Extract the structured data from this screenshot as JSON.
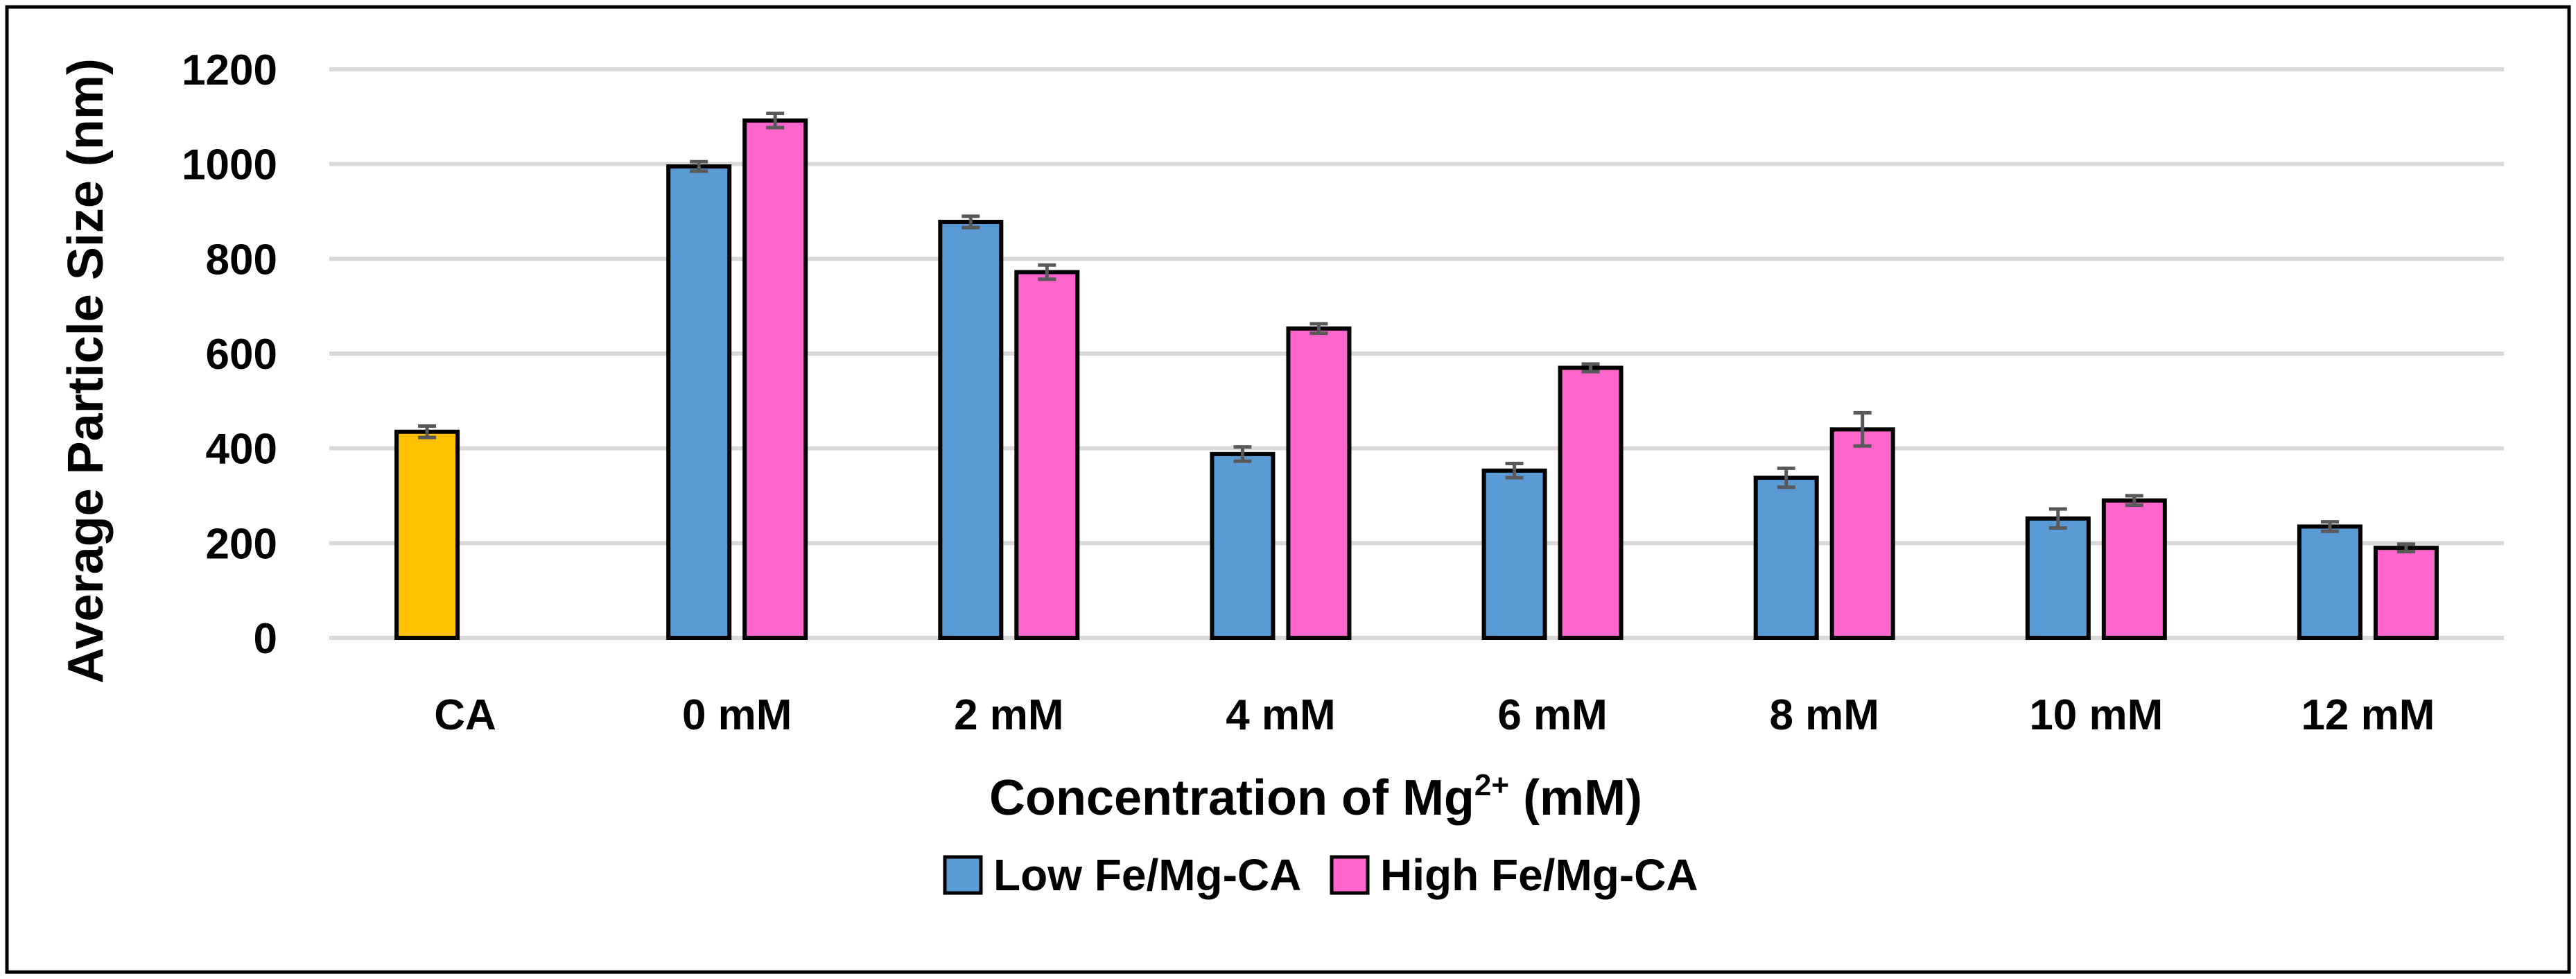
{
  "chart_data": {
    "type": "bar",
    "title": "",
    "xlabel": "Concentration of Mg",
    "xlabel_superscript": "2+",
    "xlabel_suffix": " (mM)",
    "ylabel": "Average Particle Size (nm)",
    "ylim": [
      0,
      1200
    ],
    "yticks": [
      0,
      200,
      400,
      600,
      800,
      1000,
      1200
    ],
    "grid": true,
    "legend_position": "bottom",
    "categories": [
      "CA",
      "0 mM",
      "2 mM",
      "4 mM",
      "6 mM",
      "8 mM",
      "10 mM",
      "12 mM"
    ],
    "control": {
      "name": "CA",
      "value": 435,
      "error": 12,
      "color": "#FFC000"
    },
    "series": [
      {
        "name": "Low Fe/Mg-CA",
        "color": "#5B9BD5",
        "values": [
          null,
          995,
          878,
          388,
          353,
          338,
          252,
          235
        ],
        "errors": [
          null,
          10,
          12,
          15,
          15,
          20,
          20,
          10
        ]
      },
      {
        "name": "High Fe/Mg-CA",
        "color": "#FF66CC",
        "values": [
          null,
          1092,
          772,
          653,
          570,
          440,
          290,
          190
        ],
        "errors": [
          null,
          15,
          15,
          10,
          8,
          35,
          10,
          8
        ]
      }
    ]
  }
}
